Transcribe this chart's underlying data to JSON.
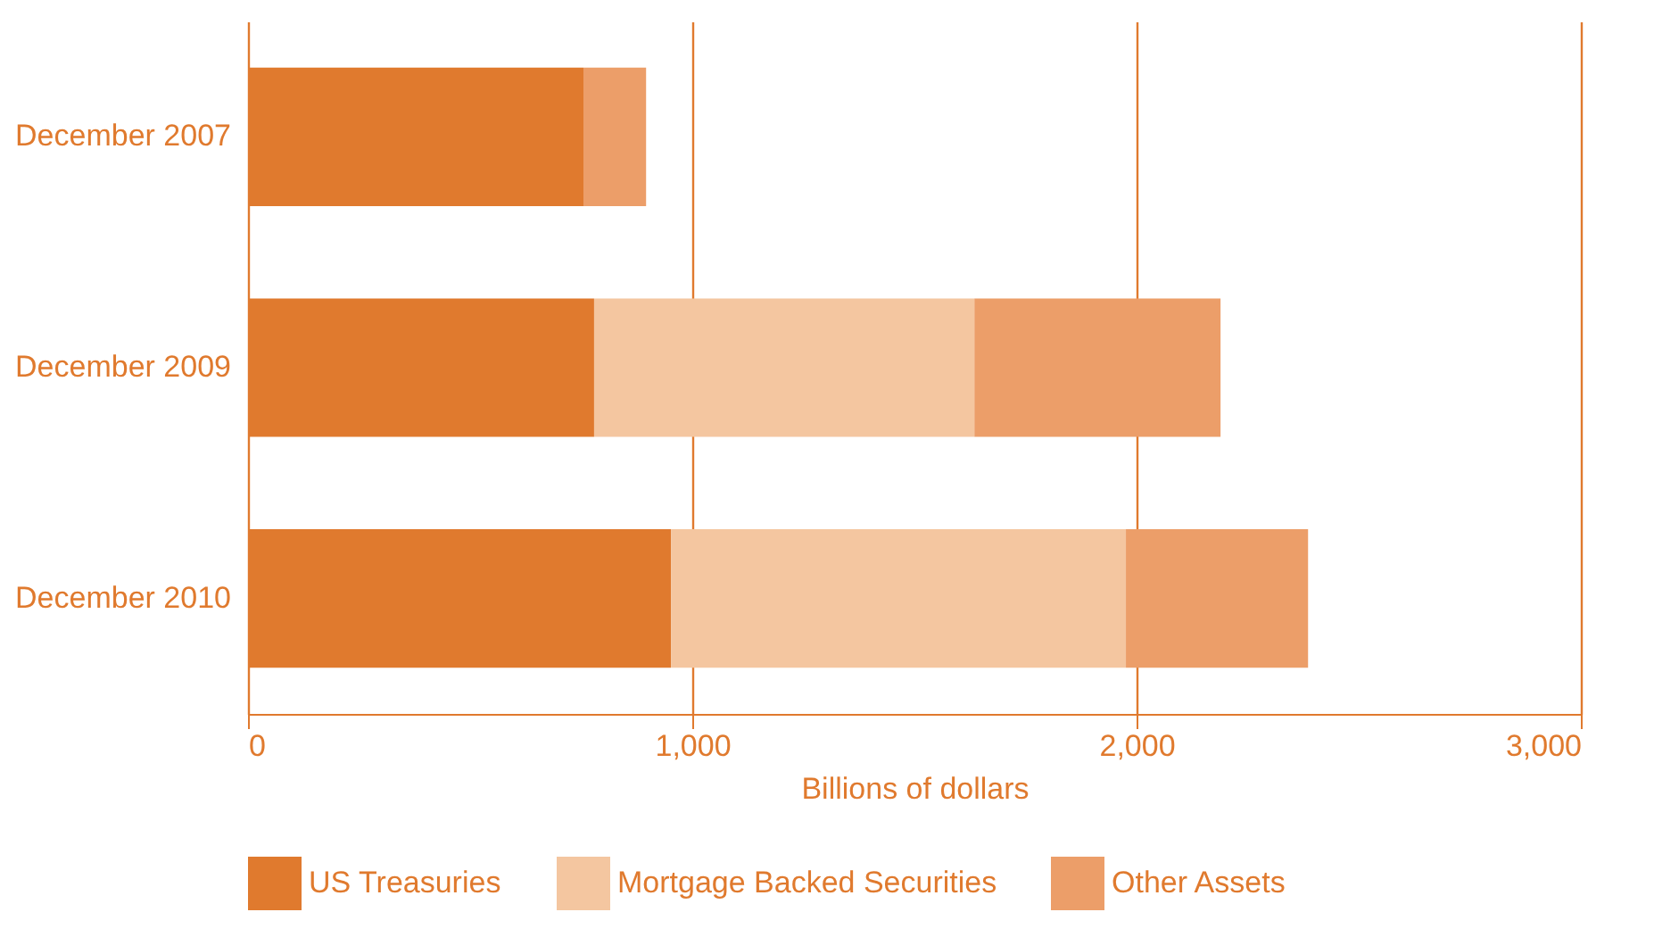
{
  "chart_data": {
    "type": "bar",
    "orientation": "horizontal",
    "stacked": true,
    "xlabel": "Billions of dollars",
    "categories": [
      "December 2007",
      "December 2009",
      "December 2010"
    ],
    "series": [
      {
        "name": "US Treasuries",
        "color": "#e07a2e",
        "values": [
          755,
          779,
          952
        ]
      },
      {
        "name": "Mortgage Backed Securities",
        "color": "#f4c6a0",
        "values": [
          null,
          856,
          1024
        ]
      },
      {
        "name": "Other Assets",
        "color": "#ec9e69",
        "values": [
          141,
          554,
          410
        ]
      }
    ],
    "xlim": [
      0,
      3000
    ],
    "xticks": [
      0,
      {
        "value": 1000,
        "label": "1,000"
      },
      {
        "value": 2000,
        "label": "2,000"
      },
      {
        "value": 3000,
        "label": "3,000"
      }
    ],
    "grid": "x",
    "legend": "bottom"
  }
}
